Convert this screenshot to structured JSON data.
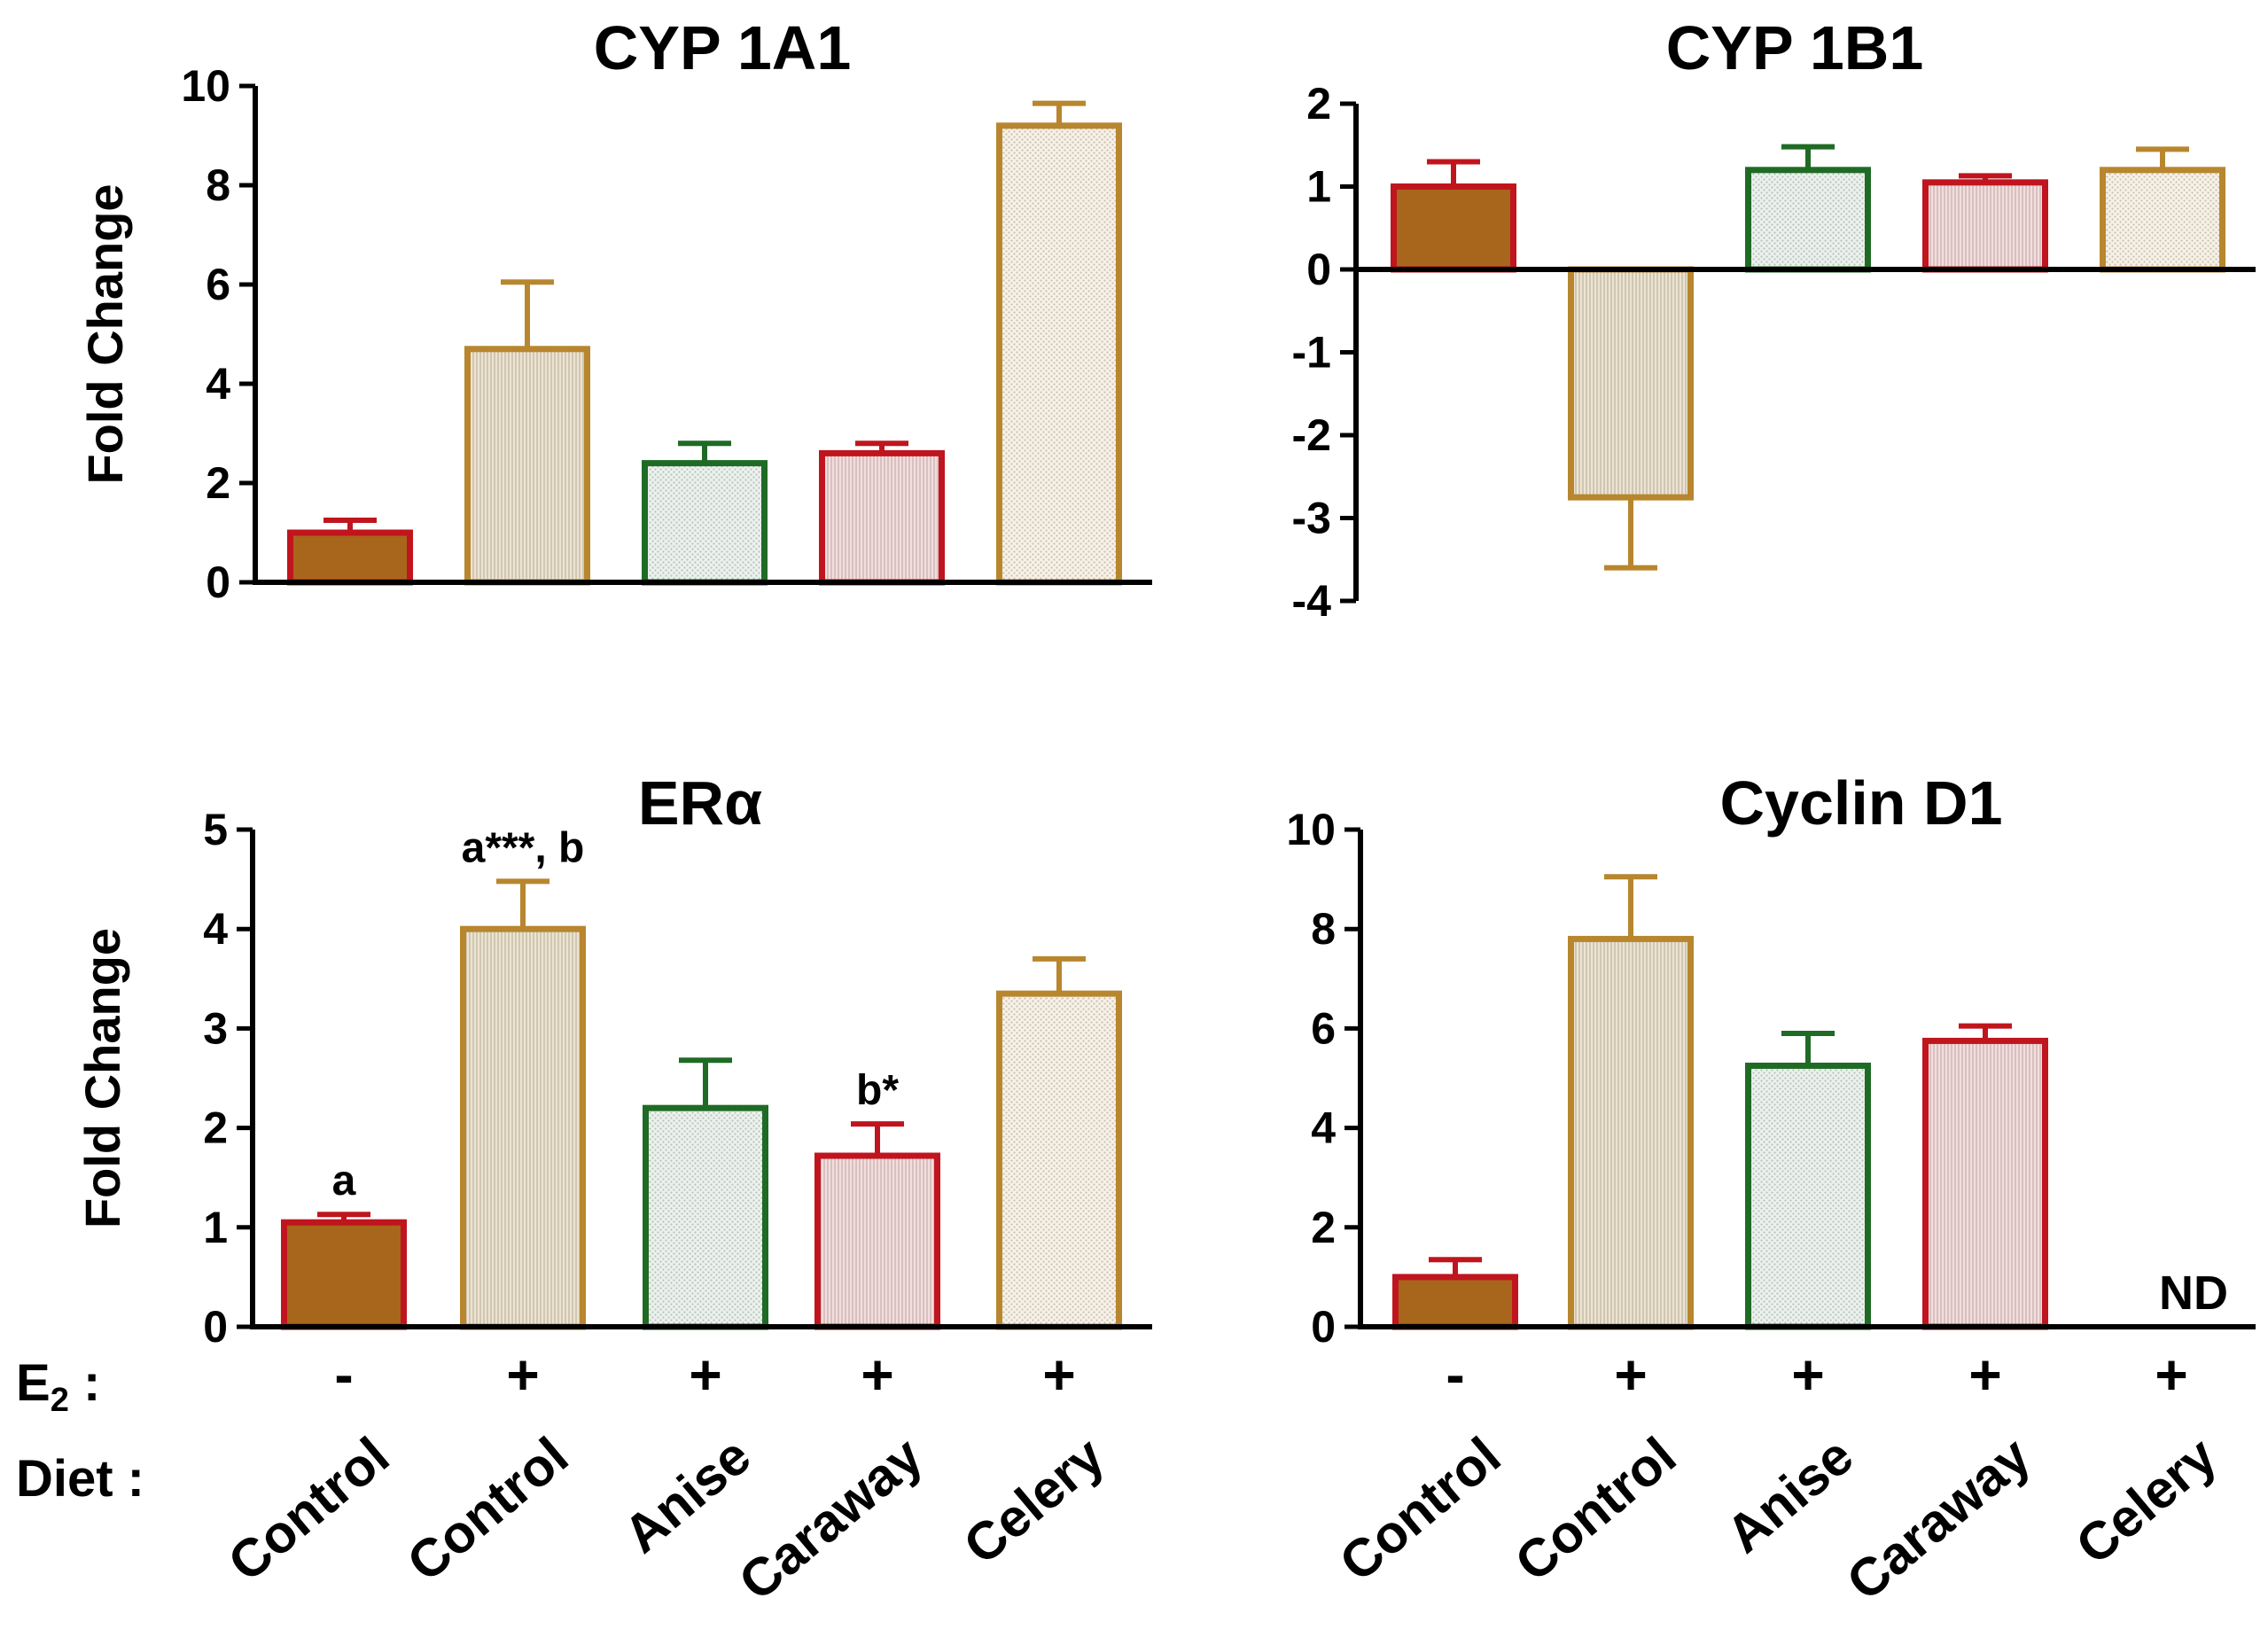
{
  "chart_data": [
    {
      "id": "cyp1a1",
      "type": "bar",
      "title": "CYP 1A1",
      "ylabel": "Fold Change",
      "ylim": [
        0,
        10
      ],
      "yticks": [
        "0",
        "2",
        "4",
        "6",
        "8",
        "10"
      ],
      "yticks_values": [
        0,
        2,
        4,
        6,
        8,
        10
      ],
      "categories": [
        "Control",
        "Control",
        "Anise",
        "Caraway",
        "Celery"
      ],
      "values": [
        1.0,
        4.7,
        2.4,
        2.6,
        9.2
      ],
      "errors": [
        0.25,
        1.35,
        0.4,
        0.2,
        0.45
      ],
      "annotations": [],
      "nd_labels": []
    },
    {
      "id": "cyp1b1",
      "type": "bar",
      "title": "CYP 1B1",
      "ylabel": "",
      "ylim": [
        -4,
        2
      ],
      "yticks": [
        "-4",
        "-3",
        "-2",
        "-1",
        "0",
        "1",
        "2"
      ],
      "yticks_values": [
        -4,
        -3,
        -2,
        -1,
        0,
        1,
        2
      ],
      "categories": [
        "Control",
        "Control",
        "Anise",
        "Caraway",
        "Celery"
      ],
      "values": [
        1.0,
        -2.75,
        1.2,
        1.05,
        1.2
      ],
      "errors": [
        0.3,
        0.85,
        0.28,
        0.08,
        0.25
      ],
      "annotations": [],
      "nd_labels": []
    },
    {
      "id": "era",
      "type": "bar",
      "title": "ERα",
      "ylabel": "Fold Change",
      "ylim": [
        0,
        5
      ],
      "yticks": [
        "0",
        "1",
        "2",
        "3",
        "4",
        "5"
      ],
      "yticks_values": [
        0,
        1,
        2,
        3,
        4,
        5
      ],
      "categories": [
        "Control",
        "Control",
        "Anise",
        "Caraway",
        "Celery"
      ],
      "values": [
        1.05,
        4.0,
        2.2,
        1.72,
        3.35
      ],
      "errors": [
        0.08,
        0.48,
        0.48,
        0.32,
        0.35
      ],
      "annotations": [
        "a",
        "a***, b",
        "",
        "b*",
        ""
      ],
      "nd_labels": []
    },
    {
      "id": "cyclind1",
      "type": "bar",
      "title": "Cyclin D1",
      "ylabel": "",
      "ylim": [
        0,
        10
      ],
      "yticks": [
        "0",
        "2",
        "4",
        "6",
        "8",
        "10"
      ],
      "yticks_values": [
        0,
        2,
        4,
        6,
        8,
        10
      ],
      "categories": [
        "Control",
        "Control",
        "Anise",
        "Caraway",
        "Celery"
      ],
      "values": [
        1.0,
        7.8,
        5.25,
        5.75,
        null
      ],
      "errors": [
        0.35,
        1.25,
        0.65,
        0.3,
        null
      ],
      "annotations": [],
      "nd_labels": [
        "",
        "",
        "",
        "",
        "ND"
      ]
    }
  ],
  "treatment_row": {
    "e2_label": "E",
    "e2_sub": "2",
    "e2_suffix": " :",
    "diet_label": "Diet :",
    "e2_values": [
      "-",
      "+",
      "+",
      "+",
      "+"
    ],
    "diet_values": [
      "Control",
      "Control",
      "Anise",
      "Caraway",
      "Celery"
    ]
  },
  "series_colors": {
    "outlines": [
      "#c0151e",
      "#b8862e",
      "#1f6b25",
      "#c0151e",
      "#b8862e"
    ],
    "fills": [
      "#a8651c",
      "#d6c09a",
      "#d3e2d6",
      "#e6b3b4",
      "#ede1c8"
    ]
  }
}
